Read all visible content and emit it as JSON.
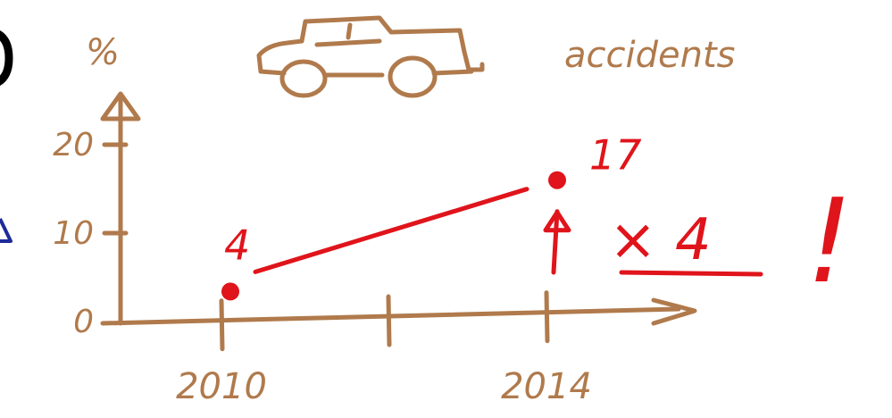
{
  "colors": {
    "axis": "#b07a4c",
    "data": "#e0141b",
    "edge_mark": "#1e2a9a"
  },
  "labels": {
    "y_unit": "%",
    "subject": "accidents",
    "multiplier": "× 4",
    "exclamation": "!"
  },
  "icons": {
    "subject_icon": "car-icon"
  },
  "chart_data": {
    "type": "line",
    "x": [
      2010,
      2014
    ],
    "xticks": [
      "2010",
      "",
      "2014"
    ],
    "xlim": [
      2009,
      2016
    ],
    "ylim": [
      0,
      22
    ],
    "yticks": [
      "0",
      "10",
      "20"
    ],
    "ylabel": "%",
    "series": [
      {
        "values": [
          4,
          17
        ],
        "point_labels": [
          "4",
          "17"
        ]
      }
    ]
  }
}
